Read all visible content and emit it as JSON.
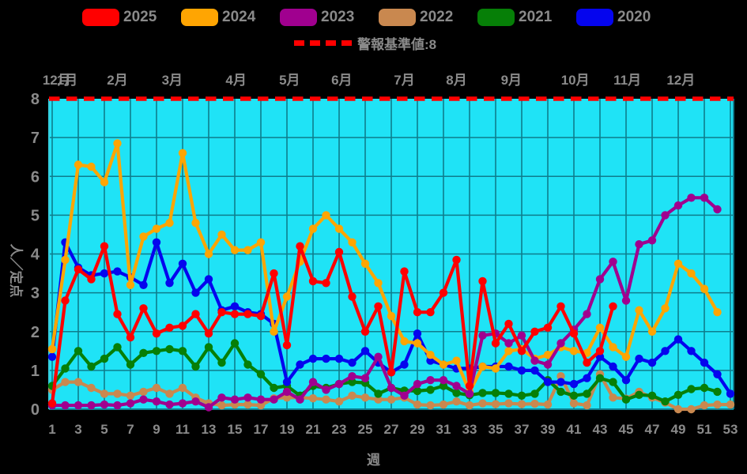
{
  "legend": {
    "items": [
      {
        "label": "2025",
        "color": "#ff0000"
      },
      {
        "label": "2024",
        "color": "#ffa502"
      },
      {
        "label": "2023",
        "color": "#a0008f"
      },
      {
        "label": "2022",
        "color": "#c9884f"
      },
      {
        "label": "2021",
        "color": "#067f07"
      },
      {
        "label": "2020",
        "color": "#0505ee"
      }
    ]
  },
  "alarm": {
    "label": "警報基準値:8",
    "value": 8,
    "color": "#ff0000"
  },
  "axes": {
    "y_title": "人／定点",
    "x_title": "週"
  },
  "chart_data": {
    "type": "line",
    "title": "",
    "xlabel": "週",
    "ylabel": "人／定点",
    "xlim": [
      1,
      53
    ],
    "ylim": [
      0,
      8
    ],
    "y_ticks": [
      0,
      1,
      2,
      3,
      4,
      5,
      6,
      7,
      8
    ],
    "x_ticks": [
      1,
      3,
      5,
      7,
      9,
      11,
      13,
      15,
      17,
      19,
      21,
      23,
      25,
      27,
      29,
      31,
      33,
      35,
      37,
      39,
      41,
      43,
      45,
      47,
      49,
      51,
      53
    ],
    "grid": true,
    "background_color": "#1fe3f6",
    "grid_color": "#0e7d8d",
    "tick_color": "#8a8a8a",
    "alarm_line": {
      "value": 8,
      "color": "#ff0000",
      "style": "dashed",
      "label": "警報基準値:8"
    },
    "months": [
      {
        "label": "12月",
        "week": 1.35
      },
      {
        "label": "1月",
        "week": 2.15
      },
      {
        "label": "2月",
        "week": 6.0
      },
      {
        "label": "3月",
        "week": 10.2
      },
      {
        "label": "4月",
        "week": 15.1
      },
      {
        "label": "5月",
        "week": 19.2
      },
      {
        "label": "6月",
        "week": 23.2
      },
      {
        "label": "7月",
        "week": 28.0
      },
      {
        "label": "8月",
        "week": 32.0
      },
      {
        "label": "9月",
        "week": 36.2
      },
      {
        "label": "10月",
        "week": 41.1
      },
      {
        "label": "11月",
        "week": 45.1
      },
      {
        "label": "12月",
        "week": 49.2
      }
    ],
    "draw_order": [
      "2022",
      "2021",
      "2020",
      "2024",
      "2023",
      "2025"
    ],
    "series": [
      {
        "name": "2025",
        "color": "#ff0000",
        "values": [
          0.15,
          2.8,
          3.6,
          3.35,
          4.2,
          2.45,
          1.85,
          2.6,
          1.95,
          2.1,
          2.15,
          2.45,
          1.95,
          2.5,
          2.45,
          2.45,
          2.4,
          3.5,
          1.65,
          4.2,
          3.3,
          3.25,
          4.05,
          2.9,
          2.0,
          2.65,
          0.95,
          3.55,
          2.5,
          2.5,
          3.0,
          3.85,
          0.6,
          3.3,
          1.7,
          2.2,
          1.5,
          2.0,
          2.1,
          2.65,
          1.95,
          1.2,
          1.5,
          2.65,
          null,
          null,
          null,
          null,
          null,
          null,
          null,
          null,
          null
        ]
      },
      {
        "name": "2024",
        "color": "#ffa502",
        "values": [
          1.55,
          3.85,
          6.3,
          6.25,
          5.85,
          6.85,
          3.2,
          4.45,
          4.65,
          4.8,
          6.6,
          4.8,
          4.0,
          4.5,
          4.1,
          4.1,
          4.3,
          2.0,
          2.9,
          3.8,
          4.65,
          5.0,
          4.65,
          4.3,
          3.75,
          3.25,
          2.4,
          1.75,
          1.7,
          1.4,
          1.15,
          1.25,
          0.45,
          1.1,
          1.05,
          1.5,
          1.55,
          1.3,
          1.4,
          1.6,
          1.5,
          1.45,
          2.1,
          1.6,
          1.35,
          2.55,
          2.0,
          2.6,
          3.75,
          3.5,
          3.1,
          2.5,
          null
        ]
      },
      {
        "name": "2023",
        "color": "#a0008f",
        "values": [
          0.1,
          0.1,
          0.1,
          0.1,
          0.12,
          0.1,
          0.15,
          0.25,
          0.2,
          0.12,
          0.15,
          0.2,
          0.05,
          0.3,
          0.25,
          0.3,
          0.25,
          0.25,
          0.45,
          0.25,
          0.7,
          0.5,
          0.65,
          0.85,
          0.8,
          1.35,
          0.55,
          0.35,
          0.65,
          0.75,
          0.75,
          0.6,
          0.4,
          1.9,
          1.95,
          1.7,
          1.9,
          1.25,
          1.15,
          1.7,
          2.05,
          2.45,
          3.35,
          3.8,
          2.8,
          4.25,
          4.35,
          5.0,
          5.25,
          5.45,
          5.45,
          5.15,
          null
        ]
      },
      {
        "name": "2022",
        "color": "#c9884f",
        "values": [
          0.5,
          0.7,
          0.7,
          0.55,
          0.4,
          0.4,
          0.35,
          0.45,
          0.55,
          0.4,
          0.55,
          0.3,
          0.15,
          0.1,
          0.12,
          0.12,
          0.1,
          0.28,
          0.3,
          0.3,
          0.28,
          0.25,
          0.2,
          0.35,
          0.3,
          0.25,
          0.25,
          0.3,
          0.12,
          0.1,
          0.12,
          0.2,
          0.1,
          0.15,
          0.13,
          0.15,
          0.13,
          0.14,
          0.12,
          0.85,
          0.15,
          0.1,
          0.9,
          0.3,
          0.27,
          0.45,
          0.3,
          0.17,
          0.0,
          0.0,
          0.1,
          0.12,
          0.12
        ]
      },
      {
        "name": "2021",
        "color": "#067f07",
        "values": [
          0.6,
          1.05,
          1.5,
          1.1,
          1.3,
          1.6,
          1.15,
          1.45,
          1.5,
          1.55,
          1.5,
          1.1,
          1.6,
          1.2,
          1.7,
          1.15,
          0.9,
          0.55,
          0.6,
          0.35,
          0.6,
          0.55,
          0.65,
          0.7,
          0.68,
          0.4,
          0.55,
          0.48,
          0.47,
          0.5,
          0.6,
          0.42,
          0.36,
          0.42,
          0.42,
          0.4,
          0.35,
          0.4,
          0.75,
          0.45,
          0.35,
          0.4,
          0.8,
          0.7,
          0.25,
          0.37,
          0.35,
          0.2,
          0.37,
          0.52,
          0.55,
          0.45,
          null
        ]
      },
      {
        "name": "2020",
        "color": "#0505ee",
        "values": [
          1.35,
          4.3,
          3.65,
          3.45,
          3.5,
          3.55,
          3.4,
          3.2,
          4.3,
          3.25,
          3.75,
          3.0,
          3.35,
          2.55,
          2.65,
          2.5,
          2.45,
          2.2,
          0.7,
          1.15,
          1.3,
          1.3,
          1.3,
          1.2,
          1.5,
          1.2,
          0.95,
          1.15,
          1.95,
          1.25,
          1.15,
          1.05,
          1.05,
          1.1,
          1.1,
          1.1,
          1.0,
          1.0,
          0.7,
          0.7,
          0.65,
          0.8,
          1.35,
          1.1,
          0.75,
          1.3,
          1.2,
          1.5,
          1.8,
          1.5,
          1.2,
          0.9,
          0.4
        ]
      }
    ]
  }
}
